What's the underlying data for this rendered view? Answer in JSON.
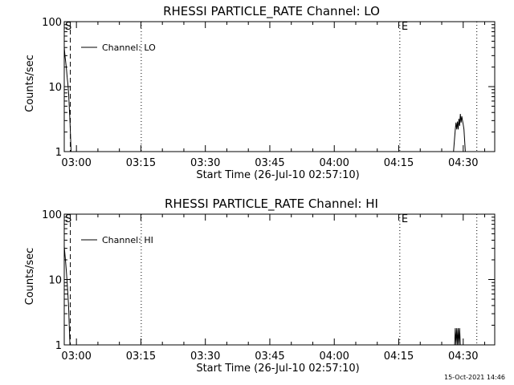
{
  "chart_data": [
    {
      "type": "line",
      "title": "RHESSI PARTICLE_RATE Channel: LO",
      "xlabel": "Start Time (26-Jul-10 02:57:10)",
      "ylabel": "Counts/sec",
      "yscale": "log",
      "ylim": [
        1,
        100
      ],
      "xlim": [
        "02:57:10",
        "04:37:20"
      ],
      "x_ticks": [
        "03:00",
        "03:15",
        "03:30",
        "03:45",
        "04:00",
        "04:15",
        "04:30"
      ],
      "y_ticks": [
        "1",
        "10",
        "100"
      ],
      "legend": {
        "label": "Channel: LO",
        "placement": "top-left"
      },
      "markers": [
        {
          "label": "S",
          "time": "02:58:35",
          "style": "dashed"
        },
        {
          "label": "",
          "time": "03:15:05",
          "style": "dotted"
        },
        {
          "label": "E",
          "time": "04:15:15",
          "style": "dotted"
        },
        {
          "label": "",
          "time": "04:33:10",
          "style": "dotted"
        }
      ],
      "series": [
        {
          "name": "Channel: LO",
          "points": [
            [
              "02:57:10",
              40
            ],
            [
              "02:57:20",
              30
            ],
            [
              "02:57:30",
              24
            ],
            [
              "02:57:40",
              19
            ],
            [
              "02:57:50",
              14
            ],
            [
              "02:58:00",
              11
            ],
            [
              "02:58:10",
              8
            ],
            [
              "02:58:20",
              5
            ],
            [
              "02:58:30",
              3
            ],
            [
              "02:58:40",
              1.5
            ],
            [
              "02:58:45",
              1
            ]
          ]
        },
        {
          "name": "Channel: LO",
          "points": [
            [
              "04:27:45",
              1
            ],
            [
              "04:28:10",
              2.2
            ],
            [
              "04:28:20",
              2.8
            ],
            [
              "04:28:30",
              2.2
            ],
            [
              "04:28:40",
              2.9
            ],
            [
              "04:28:50",
              2.2
            ],
            [
              "04:29:00",
              3.2
            ],
            [
              "04:29:10",
              2.5
            ],
            [
              "04:29:20",
              3.8
            ],
            [
              "04:29:30",
              2.8
            ],
            [
              "04:29:40",
              3.5
            ],
            [
              "04:29:50",
              3
            ],
            [
              "04:30:00",
              2.6
            ],
            [
              "04:30:10",
              2.2
            ],
            [
              "04:30:30",
              1
            ]
          ]
        }
      ]
    },
    {
      "type": "line",
      "title": "RHESSI PARTICLE_RATE Channel: HI",
      "xlabel": "Start Time (26-Jul-10 02:57:10)",
      "ylabel": "Counts/sec",
      "yscale": "log",
      "ylim": [
        1,
        100
      ],
      "xlim": [
        "02:57:10",
        "04:37:20"
      ],
      "x_ticks": [
        "03:00",
        "03:15",
        "03:30",
        "03:45",
        "04:00",
        "04:15",
        "04:30"
      ],
      "y_ticks": [
        "1",
        "10",
        "100"
      ],
      "legend": {
        "label": "Channel: HI",
        "placement": "top-left"
      },
      "markers": [
        {
          "label": "S",
          "time": "02:58:35",
          "style": "dashed"
        },
        {
          "label": "",
          "time": "03:15:05",
          "style": "dotted"
        },
        {
          "label": "E",
          "time": "04:15:15",
          "style": "dotted"
        },
        {
          "label": "",
          "time": "04:33:10",
          "style": "dotted"
        }
      ],
      "series": [
        {
          "name": "Channel: HI",
          "points": [
            [
              "02:57:10",
              32
            ],
            [
              "02:57:20",
              24
            ],
            [
              "02:57:30",
              18
            ],
            [
              "02:57:40",
              13
            ],
            [
              "02:57:50",
              9
            ],
            [
              "02:58:00",
              6
            ],
            [
              "02:58:10",
              4
            ],
            [
              "02:58:20",
              2
            ],
            [
              "02:58:30",
              1
            ]
          ]
        },
        {
          "name": "Channel: HI",
          "points": [
            [
              "04:28:00",
              1
            ],
            [
              "04:28:10",
              1.8
            ],
            [
              "04:28:20",
              1
            ],
            [
              "04:28:30",
              1.8
            ],
            [
              "04:28:40",
              1
            ],
            [
              "04:28:50",
              1.8
            ],
            [
              "04:29:00",
              1
            ],
            [
              "04:29:10",
              1.8
            ],
            [
              "04:29:20",
              1
            ]
          ]
        }
      ]
    }
  ],
  "footer": {
    "timestamp": "15-Oct-2021 14:46"
  }
}
